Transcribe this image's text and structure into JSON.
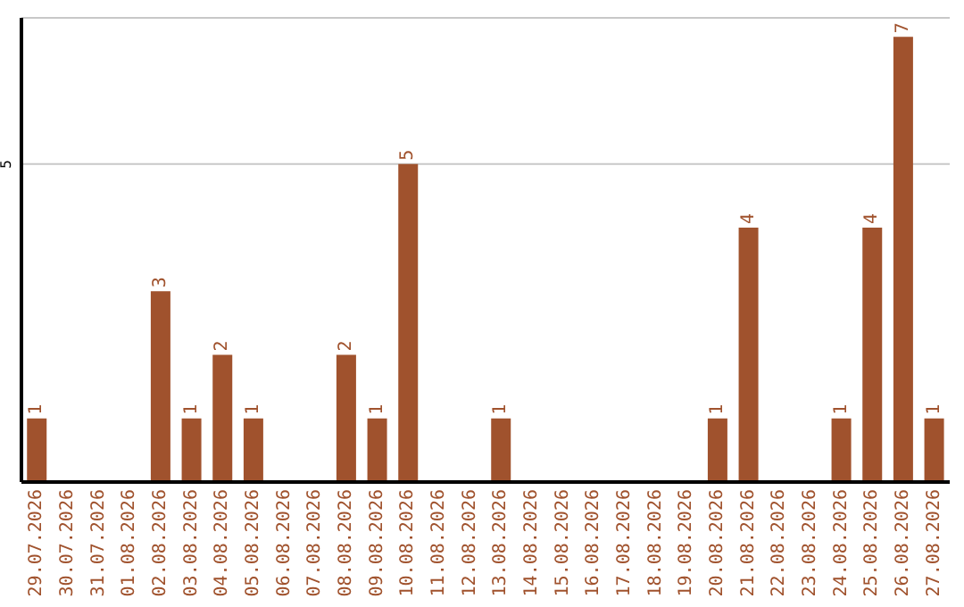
{
  "chart_data": {
    "type": "bar",
    "categories": [
      "29.07.2026",
      "30.07.2026",
      "31.07.2026",
      "01.08.2026",
      "02.08.2026",
      "03.08.2026",
      "04.08.2026",
      "05.08.2026",
      "06.08.2026",
      "07.08.2026",
      "08.08.2026",
      "09.08.2026",
      "10.08.2026",
      "11.08.2026",
      "12.08.2026",
      "13.08.2026",
      "14.08.2026",
      "15.08.2026",
      "16.08.2026",
      "17.08.2026",
      "18.08.2026",
      "19.08.2026",
      "20.08.2026",
      "21.08.2026",
      "22.08.2026",
      "23.08.2026",
      "24.08.2026",
      "25.08.2026",
      "26.08.2026",
      "27.08.2026"
    ],
    "values": [
      1,
      0,
      0,
      0,
      3,
      1,
      2,
      1,
      0,
      0,
      2,
      1,
      5,
      0,
      0,
      1,
      0,
      0,
      0,
      0,
      0,
      0,
      1,
      4,
      0,
      0,
      1,
      4,
      7,
      1
    ],
    "value_labels": [
      "1",
      null,
      null,
      null,
      "3",
      "1",
      "2",
      "1",
      null,
      null,
      "2",
      "1",
      "5",
      null,
      null,
      "1",
      null,
      null,
      null,
      null,
      null,
      null,
      "1",
      "4",
      null,
      null,
      "1",
      "4",
      "7",
      "1"
    ],
    "color": "#a0522d",
    "ylim": [
      0,
      7.3
    ],
    "yticks": [
      5
    ],
    "grid": "y"
  }
}
